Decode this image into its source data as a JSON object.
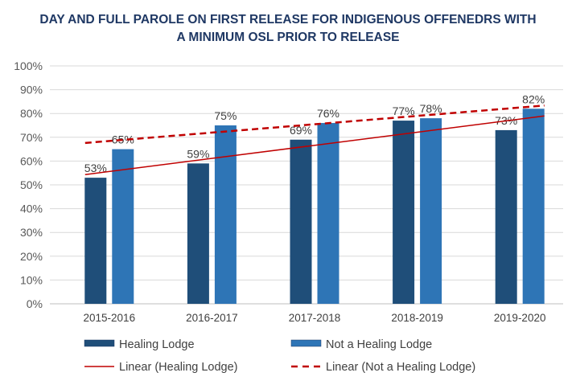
{
  "chart_data": {
    "type": "bar",
    "title_lines": [
      "DAY AND FULL PAROLE ON FIRST RELEASE FOR INDIGENOUS OFFENEDRS WITH",
      "A MINIMUM OSL PRIOR TO RELEASE"
    ],
    "categories": [
      "2015-2016",
      "2016-2017",
      "2017-2018",
      "2018-2019",
      "2019-2020"
    ],
    "series": [
      {
        "name": "Healing Lodge",
        "values": [
          53,
          59,
          69,
          77,
          73
        ],
        "color": "#1f4e79",
        "labels": [
          "53%",
          "59%",
          "69%",
          "77%",
          "73%"
        ]
      },
      {
        "name": "Not a Healing Lodge",
        "values": [
          65,
          75,
          76,
          78,
          82
        ],
        "color": "#2e75b6",
        "labels": [
          "65%",
          "75%",
          "76%",
          "78%",
          "82%"
        ]
      }
    ],
    "trendlines": [
      {
        "name": "Linear (Healing Lodge)",
        "series": 0,
        "style": "solid",
        "color": "#c00000"
      },
      {
        "name": "Linear (Not a Healing Lodge)",
        "series": 1,
        "style": "dashed",
        "color": "#c00000"
      }
    ],
    "ylim": [
      0,
      100
    ],
    "yticks": [
      "0%",
      "10%",
      "20%",
      "30%",
      "40%",
      "50%",
      "60%",
      "70%",
      "80%",
      "90%",
      "100%"
    ],
    "grid": true,
    "legend": "bottom",
    "xlabel": "",
    "ylabel": ""
  }
}
